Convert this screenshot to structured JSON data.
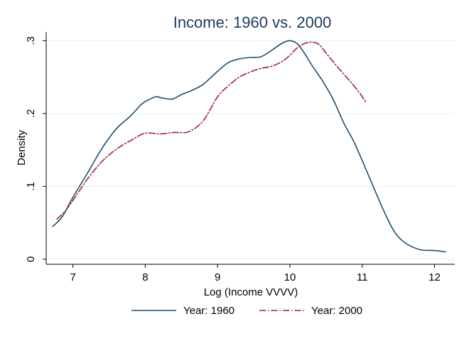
{
  "chart_data": {
    "type": "line",
    "title": "Income: 1960 vs. 2000",
    "xlabel": "Log (Income VVVV)",
    "ylabel": "Density",
    "xlim": [
      6.63,
      12.28
    ],
    "ylim": [
      -0.007,
      0.312
    ],
    "xticks": [
      7,
      8,
      9,
      10,
      11,
      12
    ],
    "xtick_labels": [
      "7",
      "8",
      "9",
      "10",
      "11",
      "12"
    ],
    "yticks": [
      0,
      0.1,
      0.2,
      0.3
    ],
    "ytick_labels": [
      "0",
      ".1",
      ".2",
      ".3"
    ],
    "grid": true,
    "legend_position": "bottom",
    "series": [
      {
        "name": "Year: 1960",
        "color": "#1f4e6e",
        "dash": "solid",
        "x": [
          6.72,
          6.85,
          7.0,
          7.2,
          7.4,
          7.6,
          7.8,
          7.95,
          8.05,
          8.15,
          8.25,
          8.38,
          8.5,
          8.65,
          8.8,
          9.0,
          9.15,
          9.3,
          9.45,
          9.6,
          9.75,
          9.9,
          10.0,
          10.1,
          10.2,
          10.3,
          10.45,
          10.6,
          10.75,
          10.9,
          11.1,
          11.3,
          11.45,
          11.6,
          11.8,
          12.0,
          12.15
        ],
        "y": [
          0.045,
          0.058,
          0.085,
          0.118,
          0.152,
          0.179,
          0.197,
          0.213,
          0.219,
          0.223,
          0.221,
          0.22,
          0.226,
          0.232,
          0.24,
          0.258,
          0.27,
          0.275,
          0.277,
          0.278,
          0.287,
          0.297,
          0.3,
          0.296,
          0.283,
          0.267,
          0.245,
          0.219,
          0.186,
          0.158,
          0.112,
          0.066,
          0.037,
          0.022,
          0.013,
          0.012,
          0.01
        ]
      },
      {
        "name": "Year: 2000",
        "color": "#9b2335",
        "dash": "dash-dot",
        "x": [
          6.78,
          6.9,
          7.05,
          7.2,
          7.4,
          7.6,
          7.8,
          8.0,
          8.2,
          8.4,
          8.6,
          8.8,
          9.0,
          9.15,
          9.3,
          9.45,
          9.6,
          9.75,
          9.9,
          10.0,
          10.1,
          10.2,
          10.3,
          10.4,
          10.5,
          10.65,
          10.8,
          10.95,
          11.05
        ],
        "y": [
          0.055,
          0.067,
          0.088,
          0.11,
          0.134,
          0.151,
          0.163,
          0.173,
          0.172,
          0.174,
          0.175,
          0.19,
          0.223,
          0.238,
          0.25,
          0.257,
          0.262,
          0.265,
          0.272,
          0.28,
          0.29,
          0.296,
          0.298,
          0.295,
          0.283,
          0.265,
          0.248,
          0.23,
          0.216
        ]
      }
    ]
  }
}
